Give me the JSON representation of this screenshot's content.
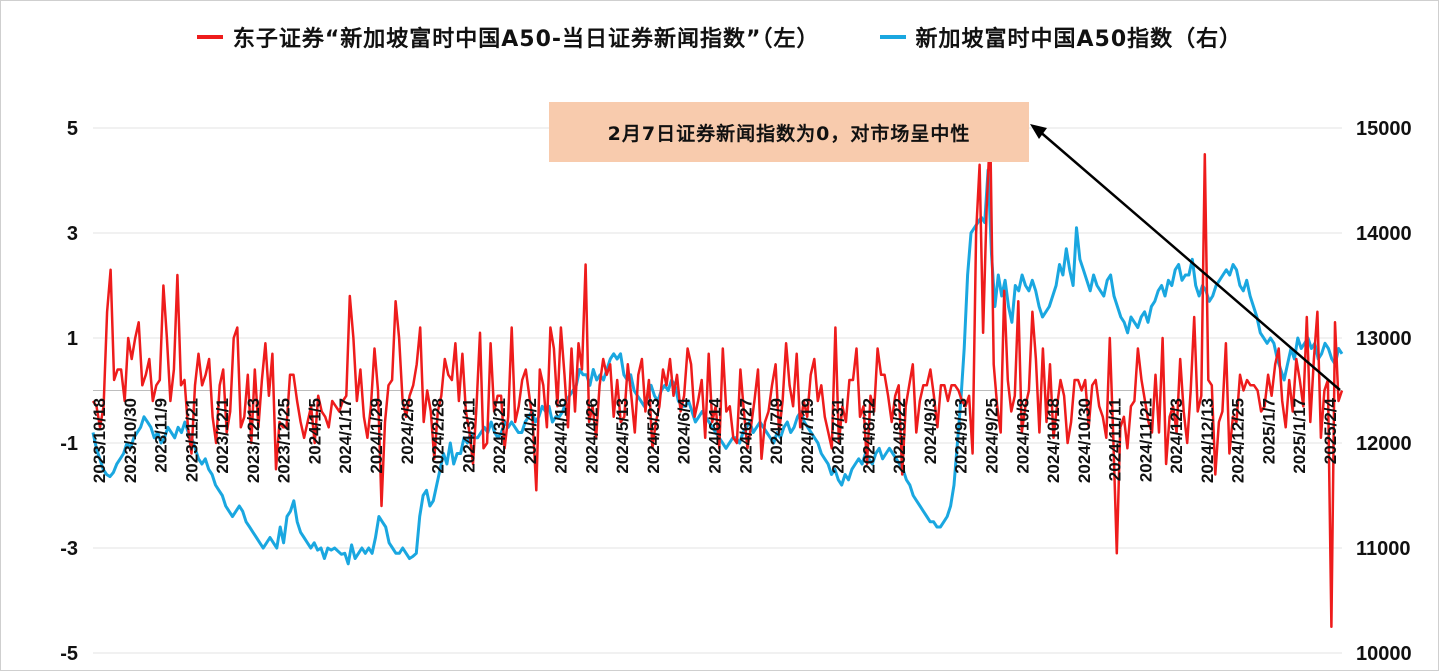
{
  "legend": {
    "left_series": "东子证券“新加坡富时中国A50-当日证券新闻指数”（左）",
    "right_series": "新加坡富时中国A50指数（右）"
  },
  "annotation": {
    "text": "2月7日证券新闻指数为0，对市场呈中性"
  },
  "colors": {
    "news_index": "#ee1c1c",
    "a50_index": "#1aa7e0",
    "annotation_bg": "#f8cbad",
    "arrow": "#000000"
  },
  "chart_data": {
    "type": "line",
    "title": "",
    "xlabel": "",
    "ylabel_left": "",
    "ylabel_right": "",
    "y_left_range": [
      -5,
      5
    ],
    "y_left_ticks": [
      "5",
      "3",
      "1",
      "-1",
      "-3",
      "-5"
    ],
    "y_right_range": [
      10000,
      15000
    ],
    "y_right_ticks": [
      "15000",
      "14000",
      "13000",
      "12000",
      "11000",
      "10000"
    ],
    "x_tick_labels": [
      "2023/10/18",
      "2023/10/30",
      "2023/11/9",
      "2023/11/21",
      "2023/12/1",
      "2023/12/13",
      "2023/12/25",
      "2024/1/5",
      "2024/1/17",
      "2024/1/29",
      "2024/2/8",
      "2024/2/28",
      "2024/3/11",
      "2024/3/21",
      "2024/4/2",
      "2024/4/16",
      "2024/4/26",
      "2024/5/13",
      "2024/5/23",
      "2024/6/4",
      "2024/6/14",
      "2024/6/27",
      "2024/7/9",
      "2024/7/19",
      "2024/7/31",
      "2024/8/12",
      "2024/8/22",
      "2024/9/3",
      "2024/9/13",
      "2024/9/25",
      "2024/10/8",
      "2024/10/18",
      "2024/10/30",
      "2024/11/11",
      "2024/11/21",
      "2024/12/3",
      "2024/12/13",
      "2024/12/25",
      "2025/1/7",
      "2025/1/17",
      "2025/2/4"
    ],
    "grid": "horizontal",
    "legend_position": "top",
    "series": [
      {
        "name": "东子证券“新加坡富时中国A50-当日证券新闻指数”（左）",
        "axis": "left",
        "values": [
          -0.2,
          -0.3,
          -0.7,
          -0.3,
          1.5,
          2.3,
          0.2,
          0.4,
          0.4,
          -0.2,
          1.0,
          0.6,
          1.0,
          1.3,
          0.1,
          0.3,
          0.6,
          -0.2,
          0.1,
          0.2,
          2.0,
          1.0,
          -0.2,
          0.4,
          2.2,
          0.1,
          0.2,
          -0.7,
          -1.2,
          0.1,
          0.7,
          0.1,
          0.3,
          0.6,
          -0.5,
          -1.0,
          0.1,
          0.4,
          -0.8,
          -0.4,
          1.0,
          1.2,
          -0.7,
          -0.5,
          0.3,
          -1.0,
          0.4,
          -0.7,
          0.2,
          0.9,
          -0.1,
          0.7,
          -1.5,
          -0.6,
          -0.7,
          -0.7,
          0.3,
          0.3,
          -0.2,
          -0.6,
          -0.9,
          -0.6,
          -0.3,
          -1.0,
          -0.1,
          -0.4,
          -0.5,
          -0.7,
          -0.2,
          -0.3,
          -0.4,
          -0.2,
          -0.1,
          1.8,
          1.0,
          -0.2,
          0.4,
          -0.5,
          -0.9,
          -0.3,
          0.8,
          0.0,
          -2.2,
          -0.6,
          0.1,
          0.2,
          1.7,
          1.0,
          -0.2,
          -0.5,
          -0.1,
          0.1,
          0.5,
          1.2,
          -0.6,
          0.0,
          -0.4,
          -1.3,
          -0.4,
          -0.1,
          0.6,
          0.3,
          0.2,
          0.9,
          -0.2,
          0.7,
          -0.4,
          -0.8,
          -1.4,
          -0.3,
          1.1,
          -1.1,
          -1.0,
          0.9,
          -0.4,
          -0.1,
          -0.1,
          -1.1,
          -0.5,
          1.2,
          -0.6,
          -0.3,
          0.2,
          0.4,
          -0.1,
          -0.6,
          -1.9,
          0.4,
          0.1,
          -0.7,
          1.2,
          0.8,
          -0.3,
          1.2,
          0.3,
          -0.7,
          0.8,
          -0.4,
          0.9,
          0.4,
          2.4,
          -0.6,
          -0.3,
          -0.9,
          0.1,
          0.6,
          0.3,
          0.5,
          -0.5,
          0.2,
          -0.6,
          -0.5,
          0.5,
          -0.1,
          -0.8,
          0.3,
          0.6,
          -0.4,
          0.2,
          -1.1,
          -0.6,
          -0.3,
          0.4,
          0.1,
          0.6,
          -0.1,
          0.3,
          -0.4,
          -0.1,
          0.8,
          0.5,
          -0.5,
          -0.2,
          0.2,
          -0.9,
          0.7,
          -0.6,
          -0.3,
          -1.1,
          0.8,
          -0.4,
          -0.3,
          -0.9,
          -1.0,
          0.4,
          -0.4,
          -1.1,
          -0.7,
          -0.2,
          0.4,
          -1.3,
          -0.6,
          -0.4,
          0.1,
          0.5,
          -0.8,
          -0.2,
          0.9,
          0.1,
          -0.3,
          0.7,
          -0.7,
          -0.2,
          -0.5,
          0.3,
          0.6,
          -0.2,
          0.1,
          -0.5,
          -0.8,
          -1.1,
          1.2,
          -1.0,
          -0.3,
          -0.6,
          0.2,
          0.2,
          0.8,
          -0.5,
          -0.3,
          -1.4,
          -0.1,
          -0.4,
          0.8,
          0.3,
          0.3,
          -0.1,
          -0.6,
          -0.1,
          0.1,
          -1.6,
          -0.3,
          0.1,
          0.5,
          -0.8,
          -0.2,
          0.1,
          0.1,
          0.4,
          -0.1,
          -0.7,
          0.1,
          0.1,
          -0.2,
          0.1,
          0.1,
          0.0,
          -0.2,
          -0.3,
          -0.1,
          -1.2,
          3.0,
          4.3,
          1.1,
          3.5,
          5.0,
          0.5,
          -0.3,
          -0.8,
          1.9,
          0.2,
          -0.4,
          -0.1,
          1.7,
          -0.8,
          -0.3,
          0.0,
          1.5,
          0.6,
          -0.8,
          0.8,
          -0.6,
          0.5,
          -0.9,
          -0.3,
          0.2,
          -0.1,
          -1.0,
          -0.6,
          0.2,
          0.2,
          0.0,
          0.2,
          -0.7,
          0.1,
          0.2,
          -0.3,
          -0.5,
          -0.9,
          1.0,
          -0.9,
          -3.1,
          -0.7,
          -0.5,
          -1.1,
          -0.3,
          -0.2,
          0.8,
          0.2,
          -0.2,
          -0.6,
          -0.8,
          0.3,
          -0.8,
          1.0,
          -1.4,
          -0.5,
          -0.3,
          -0.8,
          0.6,
          -0.4,
          -1.0,
          0.0,
          1.4,
          -0.4,
          -0.1,
          4.5,
          0.2,
          0.1,
          -1.6,
          -0.6,
          -0.4,
          0.9,
          -1.2,
          -0.5,
          -0.6,
          0.3,
          0.0,
          0.2,
          0.1,
          0.1,
          0.0,
          -0.4,
          -0.3,
          0.3,
          -0.1,
          0.5,
          0.8,
          -0.2,
          -0.7,
          0.2,
          -0.4,
          0.6,
          0.2,
          -0.3,
          1.4,
          -0.6,
          0.6,
          1.5,
          -0.9,
          0.0,
          0.2,
          -4.5,
          1.3,
          -0.2,
          0.0
        ]
      },
      {
        "name": "新加坡富时中国A50指数（右）",
        "axis": "right",
        "values": [
          12100,
          11950,
          11850,
          11750,
          11700,
          11680,
          11720,
          11800,
          11850,
          11900,
          12000,
          11950,
          12050,
          12100,
          12150,
          12250,
          12200,
          12150,
          12050,
          12100,
          12000,
          12050,
          12150,
          12100,
          12050,
          12150,
          12100,
          12200,
          12100,
          12050,
          11950,
          11850,
          11800,
          11850,
          11750,
          11700,
          11600,
          11550,
          11500,
          11400,
          11350,
          11300,
          11350,
          11400,
          11350,
          11250,
          11200,
          11150,
          11100,
          11050,
          11000,
          11050,
          11100,
          11050,
          11000,
          11200,
          11050,
          11300,
          11350,
          11450,
          11250,
          11150,
          11100,
          11050,
          11000,
          11050,
          10980,
          11000,
          10900,
          11000,
          10980,
          11000,
          10970,
          10940,
          10950,
          10850,
          11030,
          10900,
          10950,
          11000,
          10950,
          11000,
          10950,
          11100,
          11300,
          11250,
          11200,
          11050,
          11000,
          10950,
          10950,
          11000,
          10950,
          10900,
          10920,
          10950,
          11300,
          11500,
          11550,
          11400,
          11450,
          11600,
          11750,
          11900,
          11800,
          12000,
          11800,
          11900,
          11900,
          12050,
          12000,
          12100,
          12050,
          12050,
          12100,
          12150,
          12100,
          12200,
          12100,
          12050,
          12100,
          12200,
          12150,
          12200,
          12150,
          12100,
          12100,
          12200,
          12250,
          12300,
          12200,
          12250,
          12350,
          12300,
          12350,
          12200,
          12250,
          12250,
          12300,
          12400,
          12450,
          12500,
          12550,
          12700,
          12650,
          12650,
          12550,
          12700,
          12600,
          12650,
          12600,
          12700,
          12800,
          12850,
          12800,
          12850,
          12650,
          12600,
          12650,
          12500,
          12450,
          12400,
          12350,
          12450,
          12550,
          12450,
          12400,
          12500,
          12550,
          12500,
          12600,
          12550,
          12400,
          12350,
          12350,
          12400,
          12300,
          12200,
          12250,
          12300,
          12250,
          12200,
          12150,
          12100,
          12050,
          12000,
          11950,
          12000,
          12050,
          12050,
          12000,
          12100,
          12150,
          12200,
          12100,
          12150,
          12200,
          12150,
          12100,
          12050,
          12000,
          12100,
          12050,
          12150,
          12200,
          12100,
          12150,
          12250,
          12300,
          12200,
          12150,
          12100,
          12050,
          12000,
          11900,
          11850,
          11800,
          11700,
          11750,
          11650,
          11600,
          11700,
          11650,
          11750,
          11800,
          11850,
          11800,
          11900,
          11850,
          11800,
          11900,
          11950,
          11850,
          11900,
          11950,
          11900,
          11850,
          11800,
          11750,
          11650,
          11600,
          11500,
          11450,
          11400,
          11350,
          11300,
          11250,
          11250,
          11200,
          11200,
          11250,
          11300,
          11400,
          11600,
          12000,
          12400,
          12900,
          13600,
          14000,
          14050,
          14100,
          14150,
          14100,
          14600,
          13800,
          13300,
          13600,
          13400,
          13550,
          13300,
          13150,
          13500,
          13450,
          13600,
          13500,
          13450,
          13550,
          13450,
          13300,
          13200,
          13250,
          13300,
          13400,
          13500,
          13700,
          13600,
          13850,
          13650,
          13500,
          14050,
          13750,
          13650,
          13550,
          13450,
          13600,
          13500,
          13450,
          13400,
          13550,
          13600,
          13400,
          13300,
          13200,
          13150,
          13050,
          13200,
          13150,
          13100,
          13200,
          13250,
          13150,
          13300,
          13350,
          13450,
          13500,
          13400,
          13550,
          13500,
          13650,
          13700,
          13550,
          13600,
          13600,
          13750,
          13500,
          13400,
          13500,
          13450,
          13350,
          13400,
          13500,
          13550,
          13600,
          13650,
          13600,
          13700,
          13650,
          13500,
          13450,
          13550,
          13400,
          13300,
          13200,
          13050,
          13000,
          12950,
          13000,
          12950,
          12800,
          12700,
          12600,
          12750,
          12900,
          12800,
          13000,
          12900,
          12950,
          13000,
          12900,
          12950,
          12800,
          12850,
          12950,
          12900,
          12800,
          12750,
          12900,
          12850
        ]
      }
    ]
  }
}
